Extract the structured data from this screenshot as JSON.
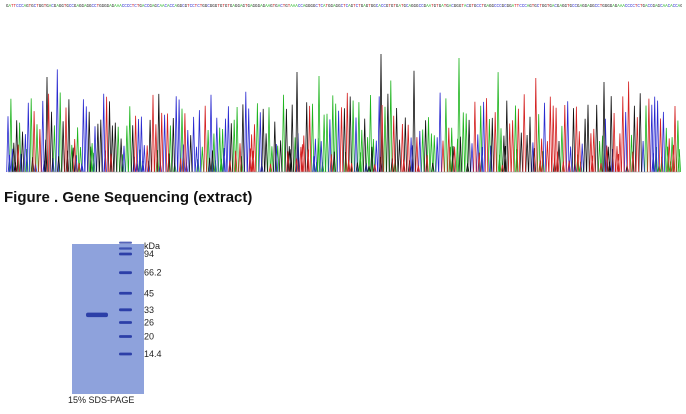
{
  "sequence_strip": {
    "bases": "GATTCCCAGTGCTGGTGACGAGGTGCCGAGGAGGCCTGGGGAGAAACCCCTCTGACCGAGCAACACCAGGCGTCCTCTGGCGGGTGTGTGAGGAGTGAGGGAGAAGTGACTGTAAACCAGGGGCTCATGGAGGCTCAGTCTGAGTGGCACCGTGTGATGCAGGGCCGAATGTGATGACGGGTACGTGCCTGAGGCCCGCG",
    "colors": {
      "A": "#1fb51f",
      "C": "#2a2ad0",
      "G": "#111111",
      "T": "#d42020"
    }
  },
  "chromatogram": {
    "trace_colors": {
      "A": "#1fb51f",
      "C": "#2a2ad0",
      "G": "#111111",
      "T": "#d42020"
    }
  },
  "caption": "Figure . Gene Sequencing (extract)",
  "gel": {
    "label": "15% SDS-PAGE",
    "unit_label": "kDa",
    "markers": [
      {
        "text": "94",
        "kda": 94
      },
      {
        "text": "66.2",
        "kda": 66.2
      },
      {
        "text": "45",
        "kda": 45
      },
      {
        "text": "33",
        "kda": 33
      },
      {
        "text": "26",
        "kda": 26
      },
      {
        "text": "20",
        "kda": 20
      },
      {
        "text": "14.4",
        "kda": 14.4
      }
    ],
    "sample_band_kda": 30,
    "gel_color": "#8ea2dc",
    "band_color": "#2c3fa8"
  }
}
